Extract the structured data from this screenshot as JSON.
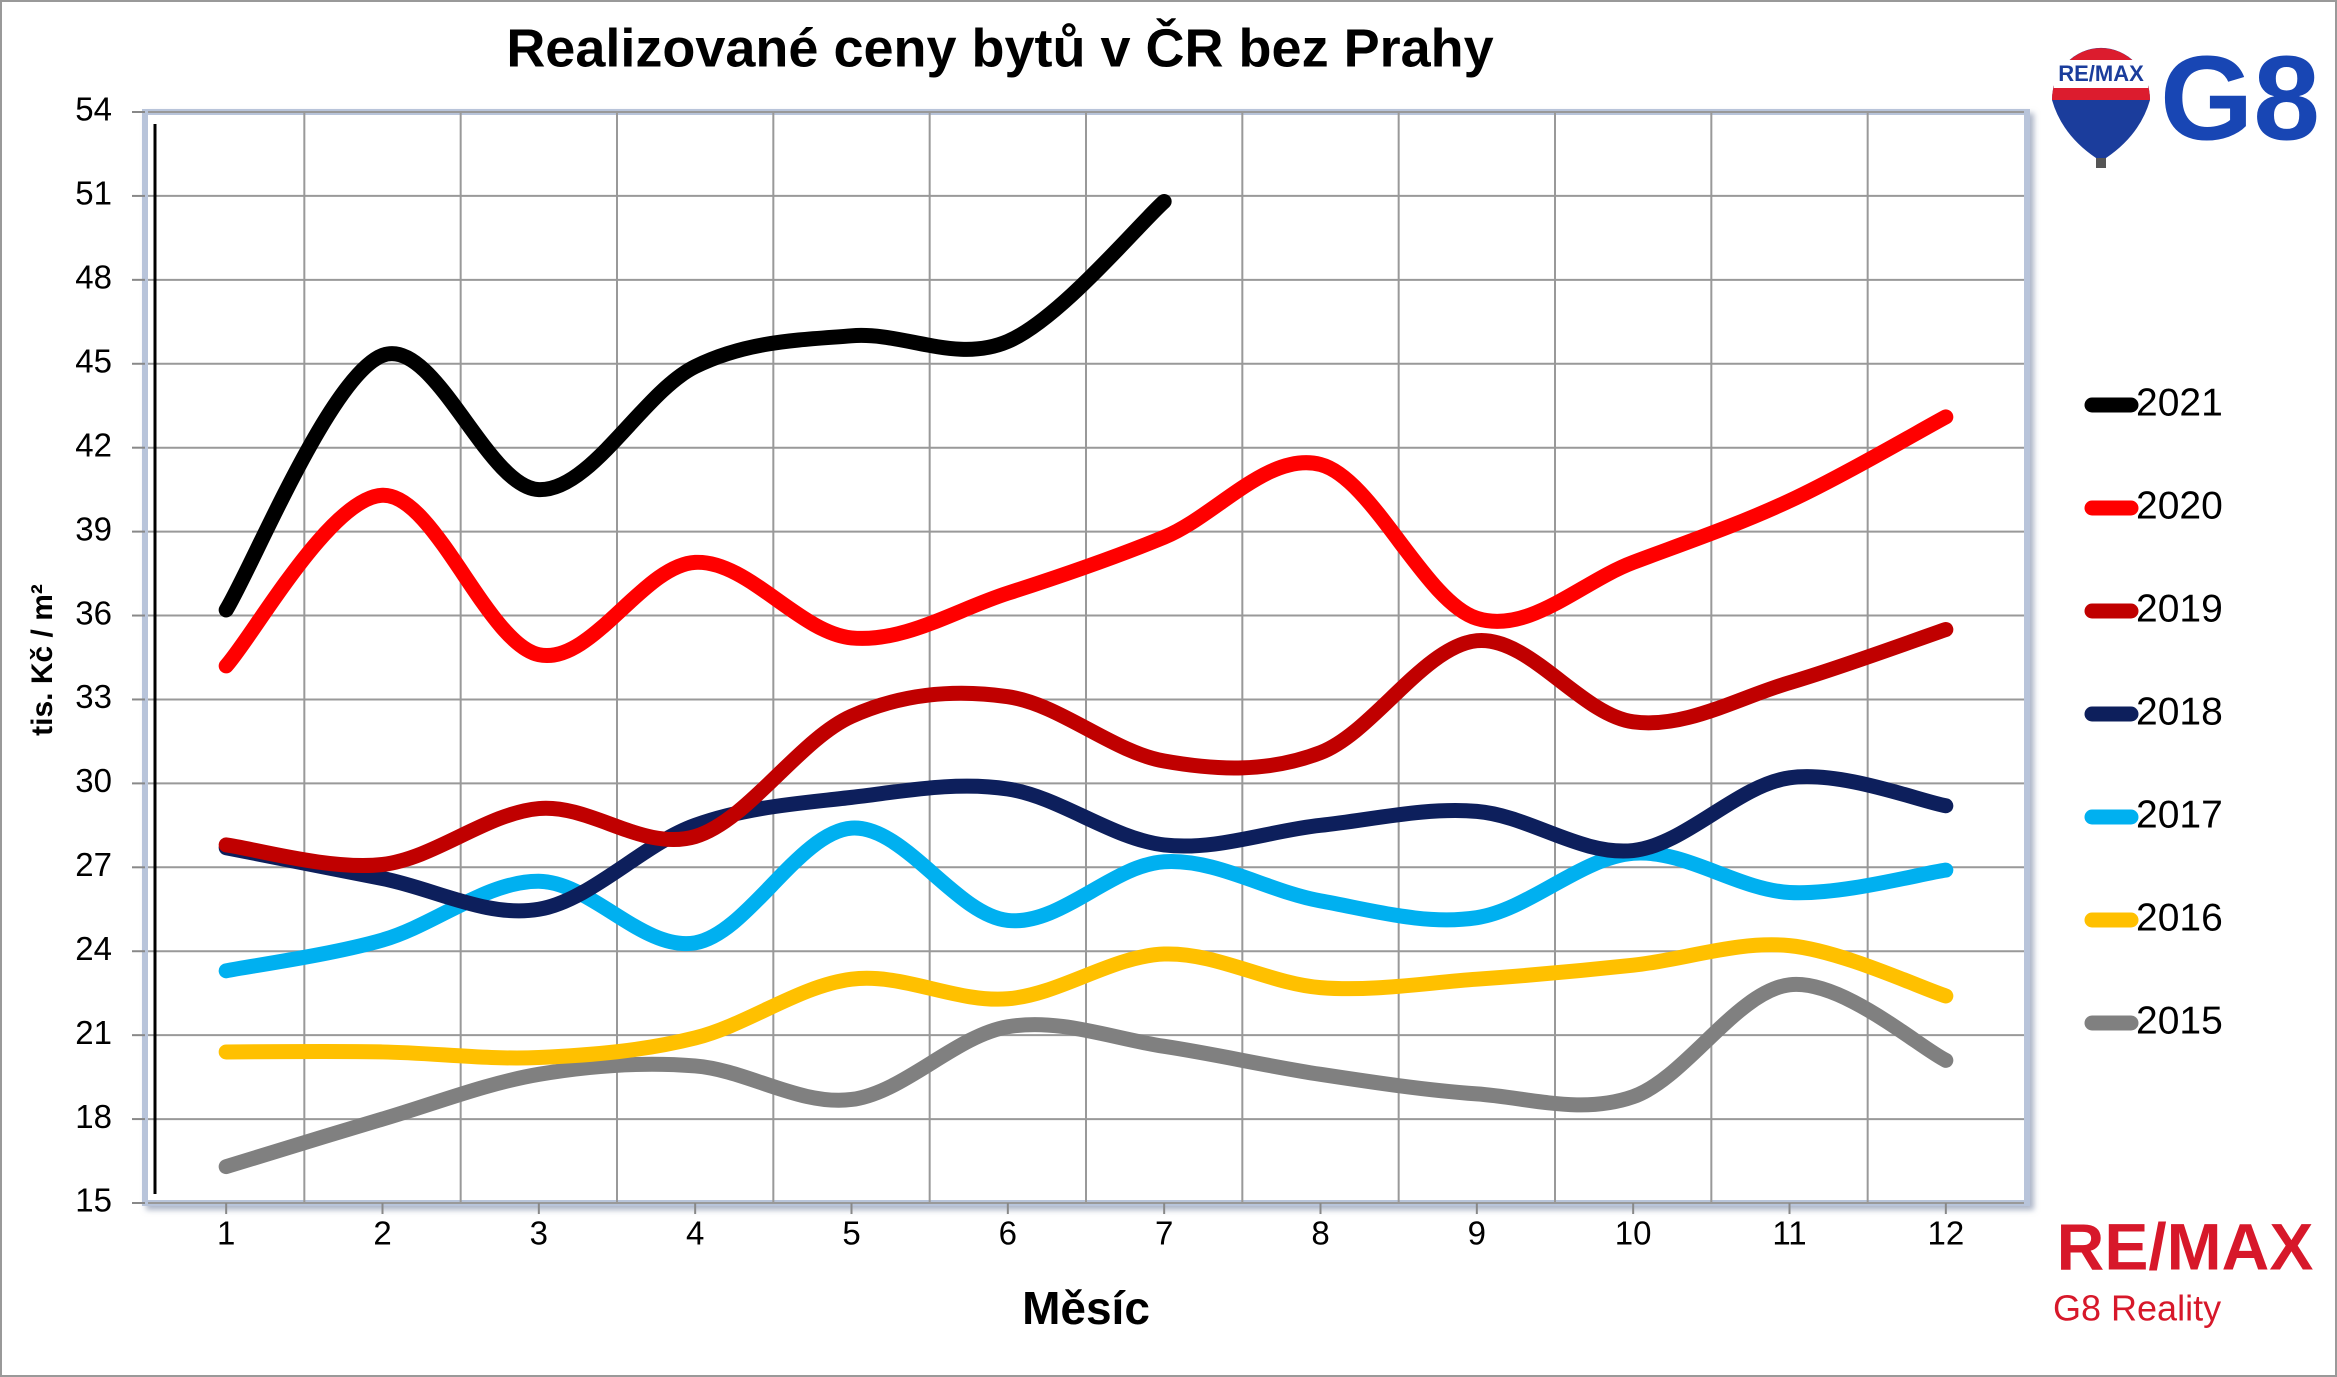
{
  "chart_data": {
    "type": "line",
    "title": "Realizované ceny bytů v ČR bez Prahy",
    "xlabel": "Měsíc",
    "ylabel": "tis. Kč / m²",
    "x": [
      1,
      2,
      3,
      4,
      5,
      6,
      7,
      8,
      9,
      10,
      11,
      12
    ],
    "xlim": [
      0.5,
      12.5
    ],
    "xticks": [
      1,
      2,
      3,
      4,
      5,
      6,
      7,
      8,
      9,
      10,
      11,
      12
    ],
    "ylim": [
      15,
      54
    ],
    "yticks": [
      15,
      18,
      21,
      24,
      27,
      30,
      33,
      36,
      39,
      42,
      45,
      48,
      51,
      54
    ],
    "grid": true,
    "legend": "right",
    "series": [
      {
        "name": "2021",
        "color": "#000000",
        "values": [
          36.2,
          45.3,
          40.5,
          44.9,
          46.0,
          45.8,
          50.8,
          null,
          null,
          null,
          null,
          null
        ]
      },
      {
        "name": "2020",
        "color": "#ff0000",
        "values": [
          34.2,
          40.3,
          34.6,
          37.9,
          35.2,
          36.8,
          38.8,
          41.4,
          35.9,
          37.9,
          40.1,
          43.1
        ]
      },
      {
        "name": "2019",
        "color": "#c00000",
        "values": [
          27.8,
          27.1,
          29.1,
          28.1,
          32.4,
          33.1,
          30.8,
          31.1,
          35.1,
          32.2,
          33.6,
          35.5
        ]
      },
      {
        "name": "2018",
        "color": "#0d1f5c",
        "values": [
          27.7,
          26.6,
          25.5,
          28.5,
          29.5,
          29.8,
          27.8,
          28.5,
          29.0,
          27.6,
          30.2,
          29.2
        ]
      },
      {
        "name": "2017",
        "color": "#00b0f0",
        "values": [
          23.3,
          24.4,
          26.5,
          24.3,
          28.4,
          25.1,
          27.2,
          25.8,
          25.2,
          27.5,
          26.1,
          26.9
        ]
      },
      {
        "name": "2016",
        "color": "#ffc000",
        "values": [
          20.4,
          20.4,
          20.2,
          20.9,
          23.0,
          22.3,
          23.9,
          22.7,
          23.0,
          23.5,
          24.2,
          22.4
        ]
      },
      {
        "name": "2015",
        "color": "#808080",
        "values": [
          16.3,
          18.0,
          19.6,
          19.9,
          18.7,
          21.3,
          20.6,
          19.6,
          18.9,
          18.8,
          22.8,
          20.1
        ]
      }
    ]
  },
  "logo": {
    "balloon": "RE/MAX",
    "brand": "G8",
    "wordmark": "RE/MAX",
    "subtitle": "G8 Reality"
  }
}
